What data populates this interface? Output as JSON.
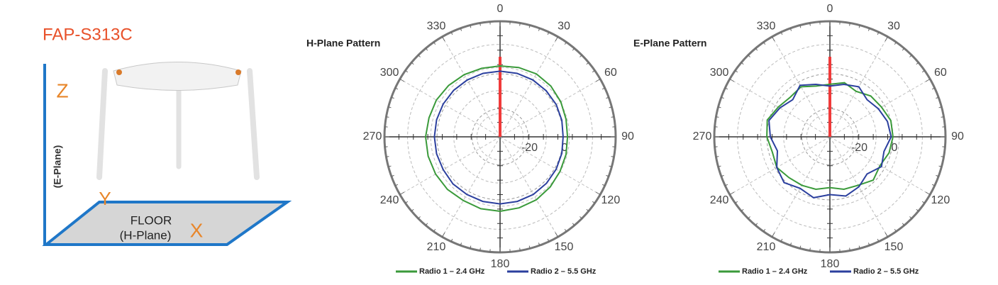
{
  "header": {
    "title": "FAP-S313C"
  },
  "diagram": {
    "z_label": "Z",
    "e_plane_label": "(E-Plane)",
    "y_label": "Y",
    "floor_label": "FLOOR",
    "h_plane_label": "(H-Plane)",
    "x_label": "X"
  },
  "chart_data": [
    {
      "type": "polar",
      "title": "H-Plane Pattern",
      "theta": [
        0,
        15,
        30,
        45,
        60,
        75,
        90,
        105,
        120,
        135,
        150,
        165,
        180,
        195,
        210,
        225,
        240,
        255,
        270,
        285,
        300,
        315,
        330,
        345
      ],
      "series": [
        {
          "name": "Radio 1 – 2.4 GHz",
          "color": "#3a9a3a",
          "values": [
            4.5,
            5,
            5.5,
            5,
            4,
            3,
            2.5,
            3,
            3.5,
            4.5,
            5.5,
            6,
            6.5,
            6.5,
            6,
            6.5,
            6.5,
            6.5,
            6.5,
            6,
            6,
            5.5,
            5,
            4.5
          ]
        },
        {
          "name": "Radio 2 – 5.5 GHz",
          "color": "#2b3f9e",
          "values": [
            1.5,
            1.5,
            1.5,
            1.2,
            1,
            0.5,
            0,
            0.5,
            1,
            1.5,
            2,
            2.2,
            2.3,
            2.2,
            2,
            2,
            1.5,
            1.5,
            1.5,
            1.5,
            1.5,
            1.5,
            1.5,
            1.5
          ]
        }
      ],
      "rlim": [
        -36,
        30
      ],
      "rticks": [
        -20,
        0
      ],
      "thetaticks": [
        0,
        30,
        60,
        90,
        120,
        150,
        180,
        210,
        240,
        270,
        300,
        330
      ],
      "grid": true
    },
    {
      "type": "polar",
      "title": "E-Plane Pattern",
      "theta": [
        0,
        15,
        30,
        45,
        60,
        75,
        90,
        105,
        120,
        135,
        150,
        165,
        180,
        195,
        210,
        225,
        240,
        255,
        270,
        285,
        300,
        315,
        330,
        345
      ],
      "series": [
        {
          "name": "Radio 1 – 2.4 GHz",
          "color": "#3a9a3a",
          "values": [
            -6,
            -4,
            -6,
            -3,
            -2,
            0,
            0,
            -1,
            -3,
            -1,
            -4,
            -5,
            -7,
            -5,
            -4,
            -3,
            -1,
            -2,
            0,
            1,
            -2,
            -4,
            -3,
            -6
          ]
        },
        {
          "name": "Radio 2 – 5.5 GHz",
          "color": "#2b3f9e",
          "values": [
            -7,
            -5,
            -3,
            -6,
            -4,
            -2,
            -1,
            -4,
            -2,
            -6,
            -3,
            -1,
            -3,
            0,
            -2,
            1,
            -1,
            -5,
            -2,
            0,
            -3,
            -6,
            -2,
            -5
          ]
        }
      ],
      "rlim": [
        -36,
        30
      ],
      "rticks": [
        -20,
        0
      ],
      "thetaticks": [
        0,
        30,
        60,
        90,
        120,
        150,
        180,
        210,
        240,
        270,
        300,
        330
      ],
      "grid": true
    }
  ]
}
